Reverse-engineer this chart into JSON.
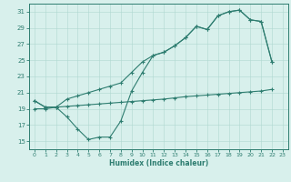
{
  "line_upper_x": [
    0,
    1,
    2,
    3,
    4,
    5,
    6,
    7,
    8,
    9,
    10,
    11,
    12,
    13,
    14,
    15,
    16,
    17,
    18,
    19,
    20,
    21,
    22
  ],
  "line_upper_y": [
    20.0,
    19.2,
    19.2,
    20.2,
    20.6,
    21.0,
    21.4,
    21.8,
    22.2,
    23.5,
    24.8,
    25.6,
    26.0,
    26.8,
    27.8,
    29.2,
    28.8,
    30.5,
    31.0,
    31.2,
    30.0,
    29.8,
    24.8
  ],
  "line_dip_x": [
    0,
    1,
    2,
    3,
    4,
    5,
    6,
    7,
    8,
    9,
    10,
    11,
    12,
    13,
    14,
    15,
    16,
    17,
    18,
    19,
    20,
    21,
    22
  ],
  "line_dip_y": [
    20.0,
    19.2,
    19.2,
    18.0,
    16.5,
    15.2,
    15.5,
    15.5,
    17.5,
    21.2,
    23.5,
    25.6,
    26.0,
    26.8,
    27.8,
    29.2,
    28.8,
    30.5,
    31.0,
    31.2,
    30.0,
    29.8,
    24.8
  ],
  "line_low_x": [
    0,
    1,
    2,
    3,
    4,
    5,
    6,
    7,
    8,
    9,
    10,
    11,
    12,
    13,
    14,
    15,
    16,
    17,
    18,
    19,
    20,
    21,
    22
  ],
  "line_low_y": [
    19.0,
    19.0,
    19.2,
    19.3,
    19.4,
    19.5,
    19.6,
    19.7,
    19.8,
    19.9,
    20.0,
    20.1,
    20.2,
    20.35,
    20.5,
    20.6,
    20.7,
    20.8,
    20.9,
    21.0,
    21.1,
    21.2,
    21.4
  ],
  "line_color": "#2e7d70",
  "bg_color": "#d8f0ec",
  "grid_color": "#afd8d0",
  "xlabel": "Humidex (Indice chaleur)",
  "ylim": [
    14,
    32
  ],
  "xlim_min": -0.5,
  "xlim_max": 23.5,
  "yticks": [
    15,
    17,
    19,
    21,
    23,
    25,
    27,
    29,
    31
  ],
  "xticks": [
    0,
    1,
    2,
    3,
    4,
    5,
    6,
    7,
    8,
    9,
    10,
    11,
    12,
    13,
    14,
    15,
    16,
    17,
    18,
    19,
    20,
    21,
    22,
    23
  ]
}
